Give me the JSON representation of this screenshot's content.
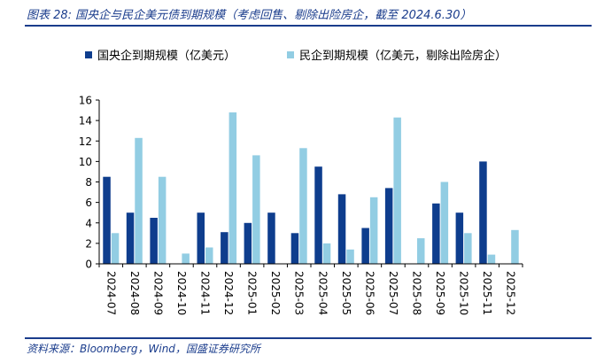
{
  "figure": {
    "title": "图表 28:  国央企与民企美元债到期规模（考虑回售、剔除出险房企，截至 2024.6.30）",
    "source": "资料来源：Bloomberg，Wind，国盛证券研究所"
  },
  "colors": {
    "series_dark": "#0e3d8d",
    "series_light": "#92cde3",
    "rule": "#1a3c8c",
    "axis": "#000000"
  },
  "chart_data": {
    "type": "bar",
    "title": "",
    "xlabel": "",
    "ylabel": "",
    "ylim": [
      0,
      16
    ],
    "yticks": [
      "0",
      "2",
      "4",
      "6",
      "8",
      "10",
      "12",
      "14",
      "16"
    ],
    "legend_position": "top",
    "grid": false,
    "categories": [
      "2024-07",
      "2024-08",
      "2024-09",
      "2024-10",
      "2024-11",
      "2024-12",
      "2025-01",
      "2025-02",
      "2025-03",
      "2025-04",
      "2025-05",
      "2025-06",
      "2025-07",
      "2025-08",
      "2025-09",
      "2025-10",
      "2025-11",
      "2025-12"
    ],
    "series": [
      {
        "name": "国央企到期规模（亿美元）",
        "color": "#0e3d8d",
        "values": [
          8.5,
          5.0,
          4.5,
          0,
          5.0,
          3.1,
          4.0,
          5.0,
          3.0,
          9.5,
          6.8,
          3.5,
          7.4,
          0,
          5.9,
          5.0,
          10.0,
          0
        ]
      },
      {
        "name": "民企到期规模（亿美元，剔除出险房企）",
        "color": "#92cde3",
        "values": [
          3.0,
          12.3,
          8.5,
          1.0,
          1.6,
          14.8,
          10.6,
          0,
          11.3,
          2.0,
          1.4,
          6.5,
          14.3,
          2.5,
          8.0,
          3.0,
          0.9,
          3.3
        ]
      }
    ]
  }
}
